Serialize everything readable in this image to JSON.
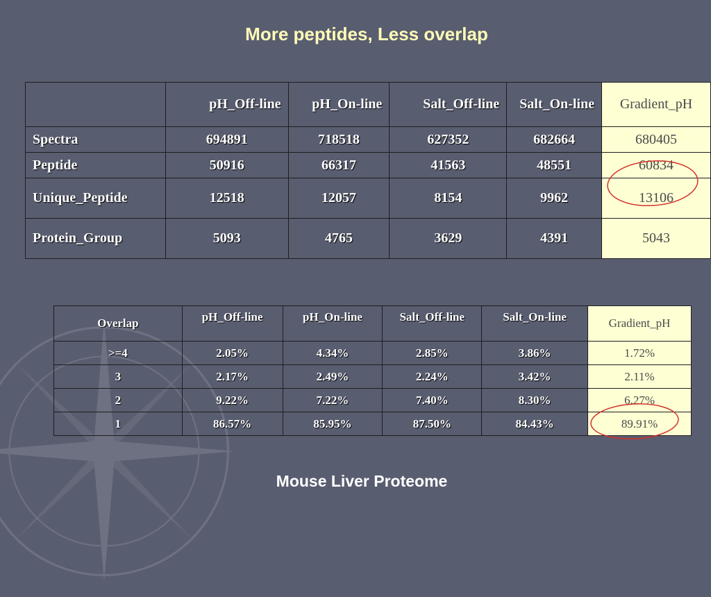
{
  "title": "More peptides, Less overlap",
  "footer": "Mouse Liver Proteome",
  "table1": {
    "columns": [
      "",
      "pH_Off-line",
      "pH_On-line",
      "Salt_Off-line",
      "Salt_On-line",
      "Gradient_pH"
    ],
    "rows": [
      {
        "label": "Spectra",
        "cells": [
          "694891",
          "718518",
          "627352",
          "682664",
          "680405"
        ]
      },
      {
        "label": "Peptide",
        "cells": [
          "50916",
          "66317",
          "41563",
          "48551",
          "60834"
        ]
      },
      {
        "label": "Unique_Peptide",
        "cells": [
          "12518",
          "12057",
          "8154",
          "9962",
          "13106"
        ]
      },
      {
        "label": "Protein_Group",
        "cells": [
          "5093",
          "4765",
          "3629",
          "4391",
          "5043"
        ]
      }
    ]
  },
  "table2": {
    "columns": [
      "Overlap",
      "pH_Off-line",
      "pH_On-line",
      "Salt_Off-line",
      "Salt_On-line",
      "Gradient_pH"
    ],
    "rows": [
      {
        "label": ">=4",
        "cells": [
          "2.05%",
          "4.34%",
          "2.85%",
          "3.86%",
          "1.72%"
        ]
      },
      {
        "label": "3",
        "cells": [
          "2.17%",
          "2.49%",
          "2.24%",
          "3.42%",
          "2.11%"
        ]
      },
      {
        "label": "2",
        "cells": [
          "9.22%",
          "7.22%",
          "7.40%",
          "8.30%",
          "6.27%"
        ]
      },
      {
        "label": "1",
        "cells": [
          "86.57%",
          "85.95%",
          "87.50%",
          "84.43%",
          "89.91%"
        ]
      }
    ]
  },
  "colors": {
    "background": "#595d70",
    "title": "#fffbb8",
    "highlight_column": "#ffffd4",
    "annotation_circle": "#d2322a"
  }
}
